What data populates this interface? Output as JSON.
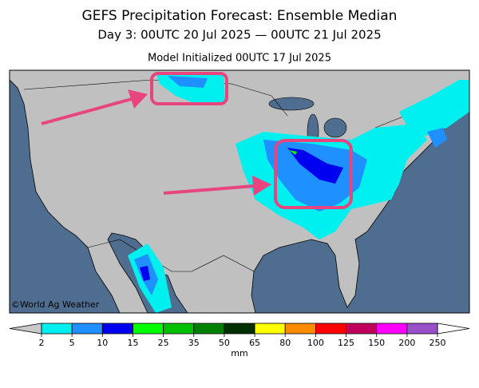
{
  "header": {
    "title": "GEFS Precipitation Forecast: Ensemble Median",
    "subtitle": "Day 3: 00UTC 20 Jul 2025 — 00UTC 21 Jul 2025",
    "initialized": "Model Initialized 00UTC 17 Jul 2025"
  },
  "map": {
    "credit": "©World Ag Weather"
  },
  "legend": {
    "unit": "mm",
    "ticks": [
      2,
      5,
      10,
      15,
      25,
      35,
      50,
      65,
      80,
      100,
      125,
      150,
      200,
      250
    ],
    "colors": [
      "#00f0f0",
      "#1e90ff",
      "#0000f0",
      "#00ff00",
      "#00c000",
      "#008000",
      "#003000",
      "#ffff00",
      "#ff8c00",
      "#ff0000",
      "#c0005a",
      "#ff00ff",
      "#9a50c8"
    ],
    "under_color": "#c8c8c8",
    "over_color": "#ffffff"
  }
}
